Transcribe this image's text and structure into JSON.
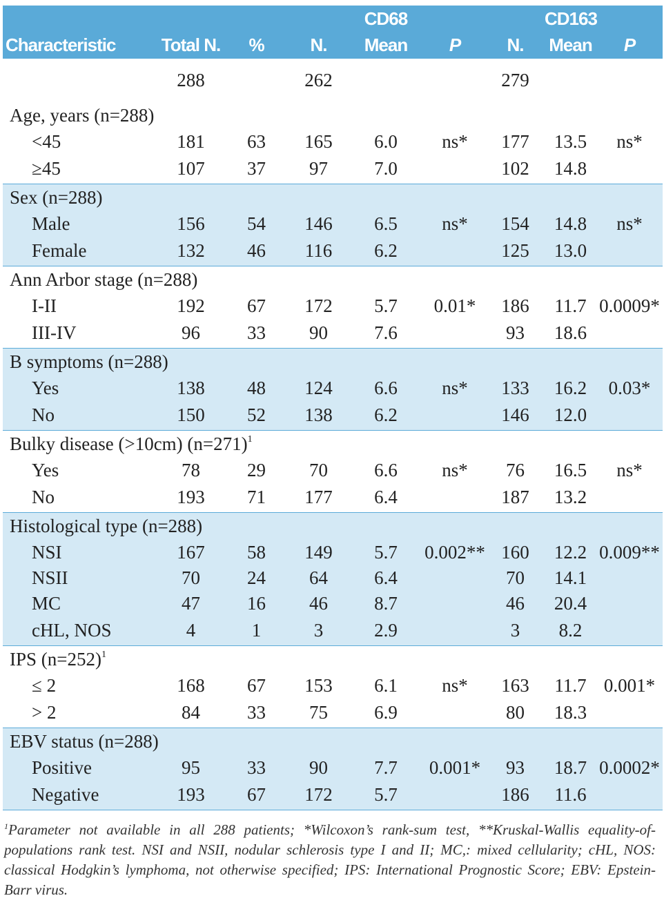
{
  "header": {
    "groups": {
      "cd68": "CD68",
      "cd163": "CD163"
    },
    "columns": [
      "Characteristic",
      "Total N.",
      "%",
      "N.",
      "Mean",
      "P",
      "N.",
      "Mean",
      "P"
    ]
  },
  "totals": {
    "total_n": "288",
    "cd68_n": "262",
    "cd163_n": "279"
  },
  "sections": [
    {
      "title": "Age, years (n=288)",
      "shaded": false,
      "rows": [
        [
          "<45",
          "181",
          "63",
          "165",
          "6.0",
          "ns*",
          "177",
          "13.5",
          "ns*"
        ],
        [
          "≥45",
          "107",
          "37",
          "97",
          "7.0",
          null,
          "102",
          "14.8",
          null
        ]
      ]
    },
    {
      "title": "Sex (n=288)",
      "shaded": true,
      "rows": [
        [
          "Male",
          "156",
          "54",
          "146",
          "6.5",
          "ns*",
          "154",
          "14.8",
          "ns*"
        ],
        [
          "Female",
          "132",
          "46",
          "116",
          "6.2",
          null,
          "125",
          "13.0",
          null
        ]
      ]
    },
    {
      "title": "Ann Arbor stage (n=288)",
      "shaded": false,
      "rows": [
        [
          "I-II",
          "192",
          "67",
          "172",
          "5.7",
          "0.01*",
          "186",
          "11.7",
          "0.0009*"
        ],
        [
          "III-IV",
          "96",
          "33",
          "90",
          "7.6",
          null,
          "93",
          "18.6",
          null
        ]
      ]
    },
    {
      "title": "B symptoms (n=288)",
      "shaded": true,
      "rows": [
        [
          "Yes",
          "138",
          "48",
          "124",
          "6.6",
          "ns*",
          "133",
          "16.2",
          "0.03*"
        ],
        [
          "No",
          "150",
          "52",
          "138",
          "6.2",
          null,
          "146",
          "12.0",
          null
        ]
      ]
    },
    {
      "title": "Bulky disease (>10cm) (n=271)",
      "note_mark": "1",
      "shaded": false,
      "rows": [
        [
          "Yes",
          "78",
          "29",
          "70",
          "6.6",
          "ns*",
          "76",
          "16.5",
          "ns*"
        ],
        [
          "No",
          "193",
          "71",
          "177",
          "6.4",
          null,
          "187",
          "13.2",
          null
        ]
      ]
    },
    {
      "title": "Histological type (n=288)",
      "shaded": true,
      "rows": [
        [
          "NSI",
          "167",
          "58",
          "149",
          "5.7",
          "0.002**",
          "160",
          "12.2",
          "0.009**"
        ],
        [
          "NSII",
          "70",
          "24",
          "64",
          "6.4",
          null,
          "70",
          "14.1",
          null
        ],
        [
          "MC",
          "47",
          "16",
          "46",
          "8.7",
          null,
          "46",
          "20.4",
          null
        ],
        [
          "cHL, NOS",
          "4",
          "1",
          "3",
          "2.9",
          null,
          "3",
          "8.2",
          null
        ]
      ]
    },
    {
      "title": "IPS (n=252)",
      "note_mark": "1",
      "shaded": false,
      "rows": [
        [
          "≤ 2",
          "168",
          "67",
          "153",
          "6.1",
          "ns*",
          "163",
          "11.7",
          "0.001*"
        ],
        [
          "> 2",
          "84",
          "33",
          "75",
          "6.9",
          null,
          "80",
          "18.3",
          null
        ]
      ]
    },
    {
      "title": "EBV status (n=288)",
      "shaded": true,
      "rows": [
        [
          "Positive",
          "95",
          "33",
          "90",
          "7.7",
          "0.001*",
          "93",
          "18.7",
          "0.0002*"
        ],
        [
          "Negative",
          "193",
          "67",
          "172",
          "5.7",
          null,
          "186",
          "11.6",
          null
        ]
      ]
    }
  ],
  "footnote": {
    "mark": "1",
    "text": "Parameter not available in all 288 patients; *Wilcoxon’s rank-sum test, **Kruskal-Wallis equality-of-populations rank test. NSI and NSII, nodular schlerosis type I and II; MC,: mixed cellularity; cHL, NOS: classical Hodgkin’s lymphoma, not otherwise specified; IPS: International Prognostic Score; EBV: Epstein-Barr virus."
  }
}
